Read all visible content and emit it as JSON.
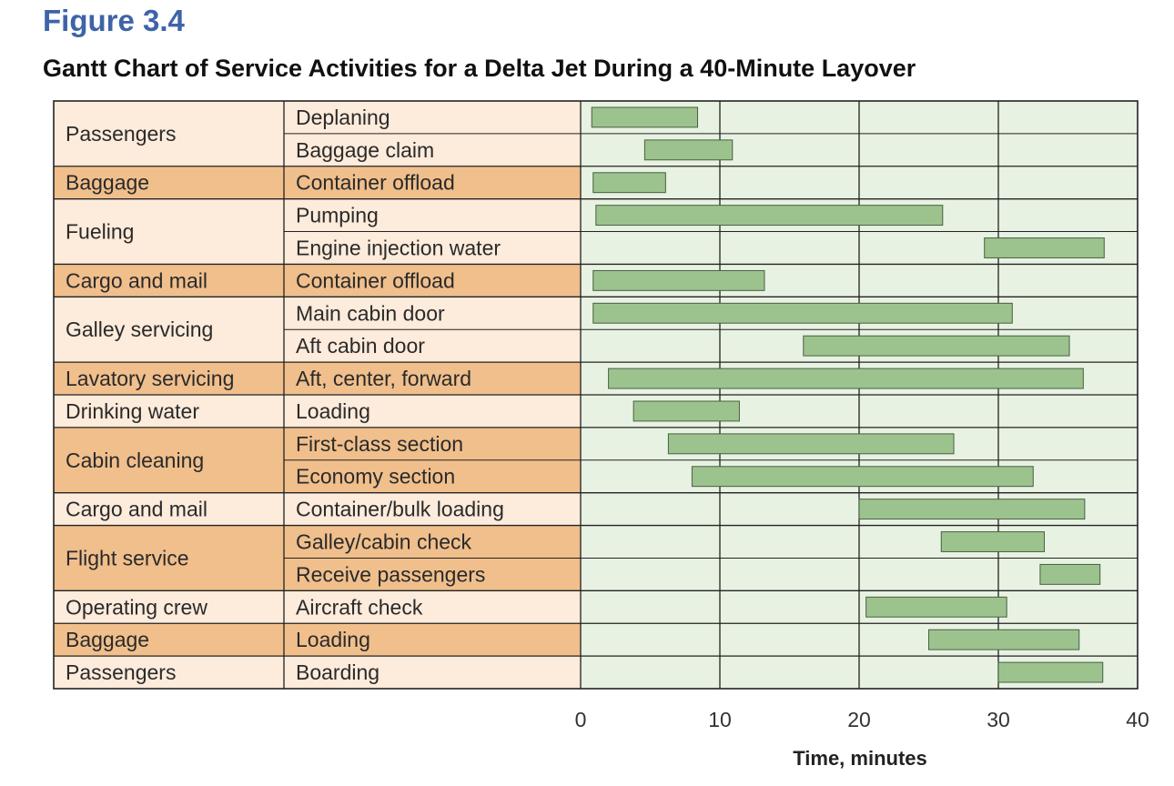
{
  "figure_label": "Figure 3.4",
  "colors": {
    "row_light": "#fdebdb",
    "row_dark": "#f0bf8c",
    "plot_bg": "#e7f2e2",
    "bar_fill": "#9cc38e",
    "grid": "#222222"
  },
  "chart_data": {
    "type": "gantt",
    "title": "Gantt Chart of Service Activities for a Delta Jet During a 40-Minute Layover",
    "xlabel": "Time, minutes",
    "xlim": [
      0,
      40
    ],
    "xticks": [
      "0",
      "10",
      "20",
      "30",
      "40"
    ],
    "groups": [
      {
        "name": "Passengers",
        "shade": "light",
        "tasks": [
          {
            "name": "Deplaning",
            "start": 0.8,
            "end": 8.4
          },
          {
            "name": "Baggage claim",
            "start": 4.6,
            "end": 10.9
          }
        ]
      },
      {
        "name": "Baggage",
        "shade": "dark",
        "tasks": [
          {
            "name": "Container offload",
            "start": 0.9,
            "end": 6.1
          }
        ]
      },
      {
        "name": "Fueling",
        "shade": "light",
        "tasks": [
          {
            "name": "Pumping",
            "start": 1.1,
            "end": 26.0
          },
          {
            "name": "Engine injection water",
            "start": 29.0,
            "end": 37.6
          }
        ]
      },
      {
        "name": "Cargo and mail",
        "shade": "dark",
        "tasks": [
          {
            "name": "Container offload",
            "start": 0.9,
            "end": 13.2
          }
        ]
      },
      {
        "name": "Galley servicing",
        "shade": "light",
        "tasks": [
          {
            "name": "Main cabin door",
            "start": 0.9,
            "end": 31.0
          },
          {
            "name": "Aft cabin door",
            "start": 16.0,
            "end": 35.1
          }
        ]
      },
      {
        "name": "Lavatory servicing",
        "shade": "dark",
        "tasks": [
          {
            "name": "Aft, center, forward",
            "start": 2.0,
            "end": 36.1
          }
        ]
      },
      {
        "name": "Drinking water",
        "shade": "light",
        "tasks": [
          {
            "name": "Loading",
            "start": 3.8,
            "end": 11.4
          }
        ]
      },
      {
        "name": "Cabin cleaning",
        "shade": "dark",
        "tasks": [
          {
            "name": "First-class section",
            "start": 6.3,
            "end": 26.8
          },
          {
            "name": "Economy section",
            "start": 8.0,
            "end": 32.5
          }
        ]
      },
      {
        "name": "Cargo and mail",
        "shade": "light",
        "tasks": [
          {
            "name": "Container/bulk loading",
            "start": 20.0,
            "end": 36.2
          }
        ]
      },
      {
        "name": "Flight service",
        "shade": "dark",
        "tasks": [
          {
            "name": "Galley/cabin check",
            "start": 25.9,
            "end": 33.3
          },
          {
            "name": "Receive passengers",
            "start": 33.0,
            "end": 37.3
          }
        ]
      },
      {
        "name": "Operating crew",
        "shade": "light",
        "tasks": [
          {
            "name": "Aircraft check",
            "start": 20.5,
            "end": 30.6
          }
        ]
      },
      {
        "name": "Baggage",
        "shade": "dark",
        "tasks": [
          {
            "name": "Loading",
            "start": 25.0,
            "end": 35.8
          }
        ]
      },
      {
        "name": "Passengers",
        "shade": "light",
        "tasks": [
          {
            "name": "Boarding",
            "start": 30.0,
            "end": 37.5
          }
        ]
      }
    ]
  }
}
